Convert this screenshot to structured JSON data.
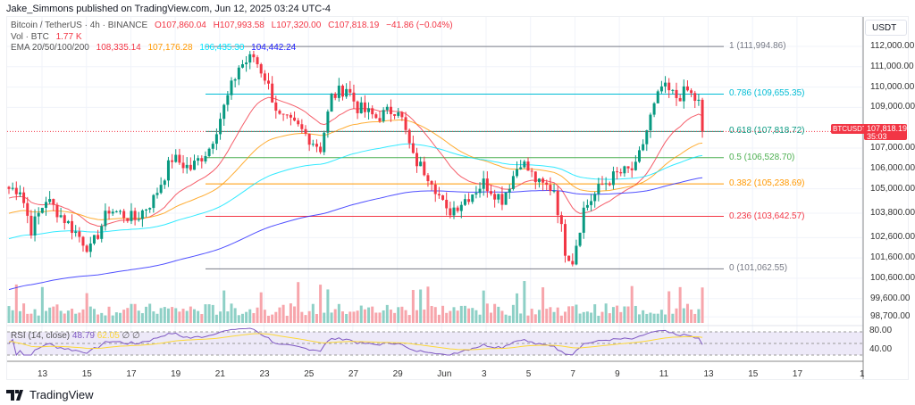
{
  "header": {
    "published": "Jake_Simmons published on TradingView.com, Jun 12, 2025 03:24 UTC-4"
  },
  "legend": {
    "symbol": "Bitcoin / TetherUS · 4h · BINANCE",
    "open": "O107,860.04",
    "high": "H107,993.58",
    "low": "L107,320.00",
    "close": "C107,818.19",
    "change": "−41.86 (−0.04%)",
    "vol_label": "Vol · BTC",
    "vol_value": "1.77 K",
    "ema_label": "EMA 20/50/100/200",
    "ema20": "108,335.14",
    "ema50": "107,176.28",
    "ema100": "106,435.30",
    "ema200": "104,442.24"
  },
  "price_axis": {
    "currency": "USDT",
    "ticks": [
      "112,000.00",
      "111,000.00",
      "110,000.00",
      "109,000.00",
      "107,000.00",
      "106,000.00",
      "105,000.00",
      "103,800.00",
      "102,600.00",
      "101,600.00",
      "100,600.00",
      "99,600.00",
      "98,700.00"
    ],
    "tick_values": [
      112000,
      111000,
      110000,
      109000,
      107000,
      106000,
      105000,
      103800,
      102600,
      101600,
      100600,
      99600,
      98700
    ],
    "current_symbol": "BTCUSDT",
    "current_price": "107,818.19",
    "countdown": "35:03"
  },
  "fib": [
    {
      "label": "1 (111,994.86)",
      "value": 111994.86,
      "color": "#787b86"
    },
    {
      "label": "0.786 (109,655.35)",
      "value": 109655.35,
      "color": "#00bcd4"
    },
    {
      "label": "0.618 (107,818.72)",
      "value": 107818.72,
      "color": "#089981"
    },
    {
      "label": "0.5 (106,528.70)",
      "value": 106528.7,
      "color": "#4caf50"
    },
    {
      "label": "0.382 (105,238.69)",
      "value": 105238.69,
      "color": "#ff9800"
    },
    {
      "label": "0.236 (103,642.57)",
      "value": 103642.57,
      "color": "#f23645"
    },
    {
      "label": "0 (101,062.55)",
      "value": 101062.55,
      "color": "#787b86"
    }
  ],
  "rsi": {
    "label": "RSI (14, close)",
    "value": "48.79",
    "ma": "62.05",
    "na1": "∅",
    "na2": "∅",
    "levels": [
      "80.00",
      "40.00"
    ]
  },
  "time_axis": {
    "labels": [
      "13",
      "15",
      "17",
      "19",
      "21",
      "23",
      "25",
      "27",
      "29",
      "Jun",
      "3",
      "5",
      "7",
      "9",
      "11",
      "13",
      "15",
      "17",
      "1"
    ]
  },
  "colors": {
    "up": "#089981",
    "down": "#f23645",
    "ema20": "#f23645",
    "ema50": "#ff9800",
    "ema100": "#00e5ff",
    "ema200": "#2424ff"
  },
  "chart_data": {
    "type": "candlestick",
    "timeframe": "4h",
    "candle_count": 188,
    "price_path": [
      [
        0,
        105000
      ],
      [
        3,
        105000
      ],
      [
        6,
        103000
      ],
      [
        10,
        104500
      ],
      [
        15,
        103500
      ],
      [
        22,
        102000
      ],
      [
        27,
        104000
      ],
      [
        34,
        103500
      ],
      [
        39,
        104500
      ],
      [
        44,
        106500
      ],
      [
        49,
        106000
      ],
      [
        54,
        107000
      ],
      [
        58,
        109000
      ],
      [
        62,
        111000
      ],
      [
        66,
        111500
      ],
      [
        69,
        110500
      ],
      [
        73,
        108500
      ],
      [
        78,
        108000
      ],
      [
        84,
        107000
      ],
      [
        87,
        109500
      ],
      [
        91,
        110000
      ],
      [
        94,
        109000
      ],
      [
        99,
        108500
      ],
      [
        105,
        109000
      ],
      [
        109,
        106500
      ],
      [
        114,
        105500
      ],
      [
        118,
        103800
      ],
      [
        123,
        104500
      ],
      [
        128,
        105300
      ],
      [
        133,
        104500
      ],
      [
        138,
        106400
      ],
      [
        143,
        105200
      ],
      [
        147,
        105000
      ],
      [
        150,
        102000
      ],
      [
        152,
        101500
      ],
      [
        155,
        104000
      ],
      [
        160,
        105200
      ],
      [
        164,
        105700
      ],
      [
        169,
        106000
      ],
      [
        173,
        108500
      ],
      [
        176,
        110000
      ],
      [
        180,
        109500
      ],
      [
        183,
        109800
      ],
      [
        186,
        109200
      ],
      [
        187,
        107818
      ]
    ]
  }
}
